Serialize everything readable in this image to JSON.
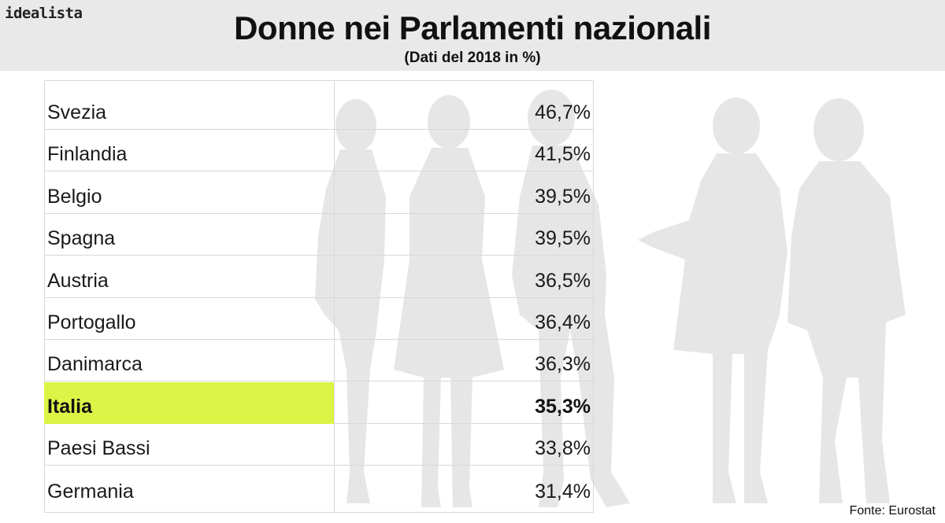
{
  "brand": "idealista",
  "chart_data": {
    "type": "table",
    "title": "Donne nei Parlamenti nazionali",
    "subtitle": "(Dati del 2018 in %)",
    "source": "Fonte: Eurostat",
    "highlight": "Italia",
    "highlight_color": "#dcf446",
    "rows": [
      {
        "country": "Svezia",
        "value": 46.7,
        "label": "46,7%"
      },
      {
        "country": "Finlandia",
        "value": 41.5,
        "label": "41,5%"
      },
      {
        "country": "Belgio",
        "value": 39.5,
        "label": "39,5%"
      },
      {
        "country": "Spagna",
        "value": 39.5,
        "label": "39,5%"
      },
      {
        "country": "Austria",
        "value": 36.5,
        "label": "36,5%"
      },
      {
        "country": "Portogallo",
        "value": 36.4,
        "label": "36,4%"
      },
      {
        "country": "Danimarca",
        "value": 36.3,
        "label": "36,3%"
      },
      {
        "country": "Italia",
        "value": 35.3,
        "label": "35,3%"
      },
      {
        "country": "Paesi Bassi",
        "value": 33.8,
        "label": "33,8%"
      },
      {
        "country": "Germania",
        "value": 31.4,
        "label": "31,4%"
      }
    ]
  }
}
